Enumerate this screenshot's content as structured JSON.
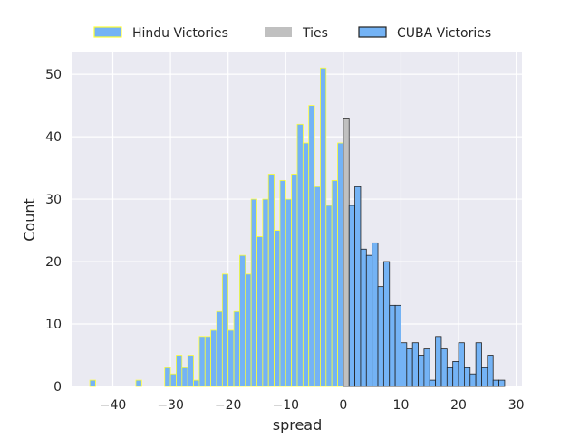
{
  "chart_data": {
    "type": "bar",
    "xlabel": "spread",
    "ylabel": "Count",
    "xlim": [
      -47,
      31
    ],
    "ylim": [
      0,
      53.5
    ],
    "xticks": [
      -40,
      -30,
      -20,
      -10,
      0,
      10,
      20,
      30
    ],
    "xtick_labels": [
      "−40",
      "−30",
      "−20",
      "−10",
      "0",
      "10",
      "20",
      "30"
    ],
    "yticks": [
      0,
      10,
      20,
      30,
      40,
      50
    ],
    "ytick_labels": [
      "0",
      "10",
      "20",
      "30",
      "40",
      "50"
    ],
    "grid": true,
    "legend_position": "top-center",
    "bin_width": 1,
    "series": [
      {
        "name": "Hindu Victories",
        "fill": "#74b3f5",
        "edge": "#ffff33",
        "x": [
          -44,
          -36,
          -31,
          -30,
          -29,
          -28,
          -27,
          -26,
          -25,
          -24,
          -23,
          -22,
          -21,
          -20,
          -19,
          -18,
          -17,
          -16,
          -15,
          -14,
          -13,
          -12,
          -11,
          -10,
          -9,
          -8,
          -7,
          -6,
          -5,
          -4,
          -3,
          -2,
          -1
        ],
        "values": [
          1,
          1,
          3,
          2,
          5,
          3,
          5,
          1,
          8,
          8,
          9,
          12,
          18,
          9,
          12,
          21,
          18,
          30,
          24,
          30,
          34,
          25,
          33,
          30,
          34,
          42,
          39,
          45,
          32,
          51,
          29,
          33,
          39
        ]
      },
      {
        "name": "Ties",
        "fill": "#c0c0c0",
        "edge": "#333333",
        "x": [
          0
        ],
        "values": [
          43
        ]
      },
      {
        "name": "CUBA Victories",
        "fill": "#74b3f5",
        "edge": "#222222",
        "x": [
          1,
          2,
          3,
          4,
          5,
          6,
          7,
          8,
          9,
          10,
          11,
          12,
          13,
          14,
          15,
          16,
          17,
          18,
          19,
          20,
          21,
          22,
          23,
          24,
          25,
          26,
          27
        ],
        "values": [
          29,
          32,
          22,
          21,
          23,
          16,
          20,
          13,
          13,
          7,
          6,
          7,
          5,
          6,
          1,
          8,
          6,
          3,
          4,
          7,
          3,
          2,
          7,
          3,
          5,
          1,
          1
        ]
      }
    ]
  }
}
